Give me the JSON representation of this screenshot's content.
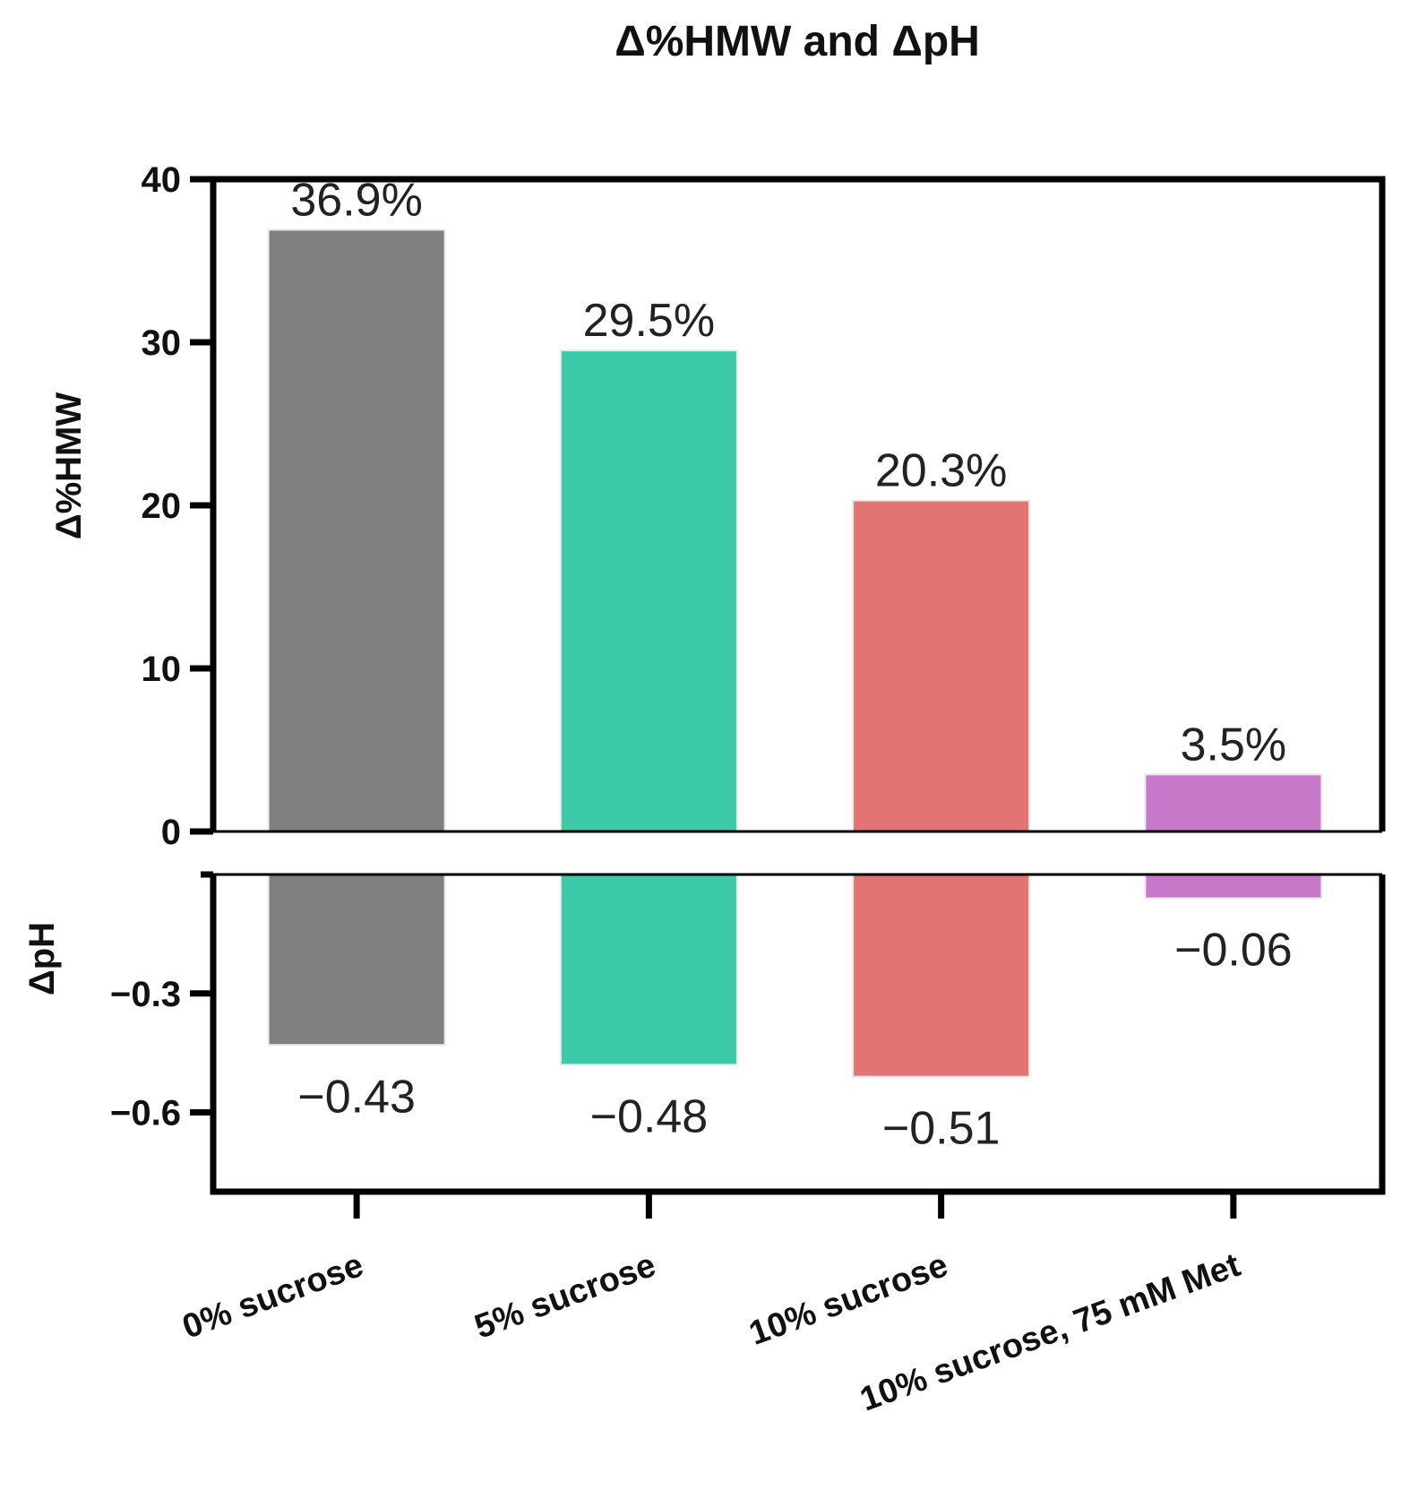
{
  "chart_data": {
    "type": "bar",
    "title": "Δ%HMW and ΔpH",
    "categories": [
      "0% sucrose",
      "5% sucrose",
      "10% sucrose",
      "10% sucrose, 75 mM Met"
    ],
    "colors": [
      "#808080",
      "#3cc9a8",
      "#e27574",
      "#c878c8"
    ],
    "panels": [
      {
        "ylabel": "Δ%HMW",
        "ylim": [
          0,
          40
        ],
        "ticks": [
          "0",
          "10",
          "20",
          "30",
          "40"
        ],
        "values": [
          36.9,
          29.5,
          20.3,
          3.5
        ],
        "data_labels": [
          "36.9%",
          "29.5%",
          "20.3%",
          "3.5%"
        ]
      },
      {
        "ylabel": "ΔpH",
        "ylim": [
          -0.8,
          0
        ],
        "ticks": [
          "−0.3",
          "−0.6"
        ],
        "values": [
          -0.43,
          -0.48,
          -0.51,
          -0.06
        ],
        "data_labels": [
          "−0.43",
          "−0.48",
          "−0.51",
          "−0.06"
        ]
      }
    ],
    "grid": false,
    "legend": "none"
  }
}
